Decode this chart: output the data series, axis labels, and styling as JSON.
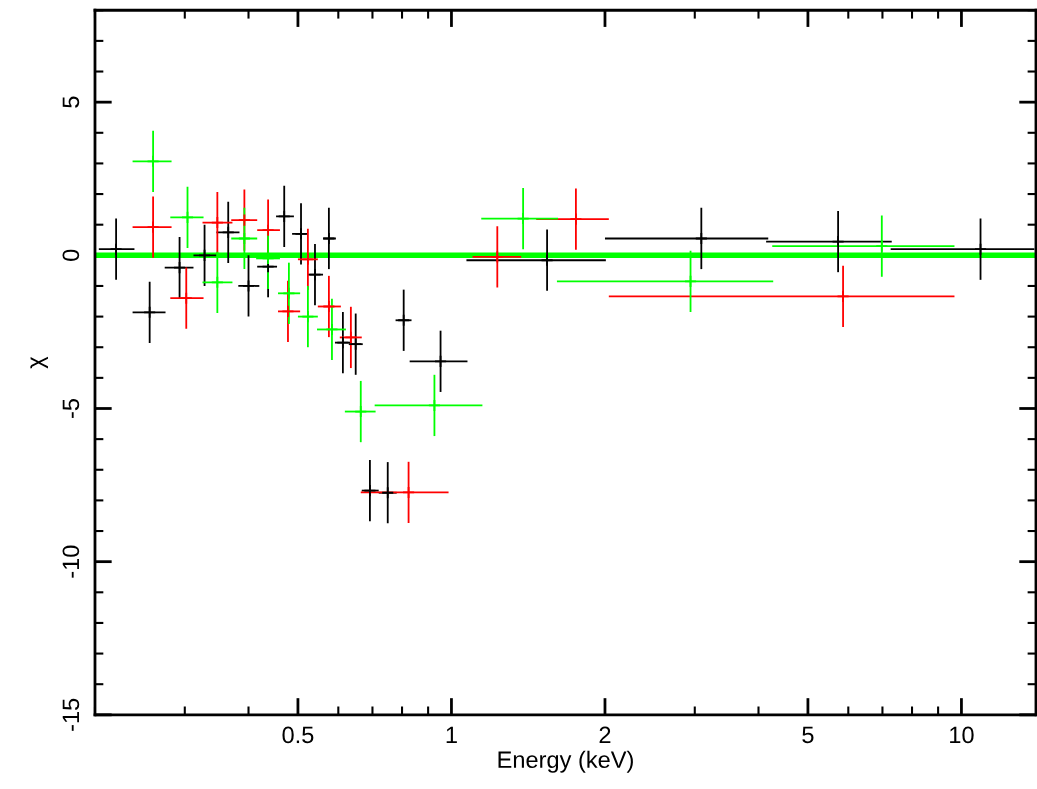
{
  "chart_data": {
    "type": "scatter",
    "xlabel": "Energy (keV)",
    "ylabel": "χ",
    "log": "x",
    "marker": "cross",
    "legend": false,
    "grid": false,
    "xlim": [
      0.2,
      14
    ],
    "xticks": [
      0.5,
      1,
      2,
      5,
      10
    ],
    "ylim": [
      -15,
      8
    ],
    "yticks": [
      -15,
      -10,
      -5,
      0,
      5
    ],
    "ref_lines": [
      {
        "axis": "y",
        "value": 0,
        "color": "#00ff00",
        "line_style": "solid"
      }
    ],
    "series": [
      {
        "color": "#000000",
        "x": [
          0.22,
          0.256,
          0.293,
          0.328,
          0.365,
          0.4,
          0.437,
          0.47,
          0.507,
          0.54,
          0.575,
          0.6125,
          0.649,
          0.692,
          0.75,
          0.806,
          0.952,
          1.54,
          3.09,
          5.73,
          10.9
        ],
        "values": [
          0.2,
          -1.86,
          -0.4,
          0.0,
          0.75,
          -1.0,
          -0.37,
          1.27,
          0.7,
          -0.63,
          0.55,
          -2.85,
          -2.9,
          -7.68,
          -7.75,
          -2.12,
          -3.46,
          -0.16,
          0.55,
          0.45,
          0.2
        ],
        "errors": [
          1,
          1,
          1,
          1,
          1,
          1,
          1,
          1,
          1,
          1,
          1,
          1,
          1,
          1,
          1,
          1,
          1,
          1,
          1,
          1,
          1
        ],
        "xerrors": [
          [
            0.2035,
            0.239
          ],
          [
            0.237,
            0.275
          ],
          [
            0.274,
            0.312
          ],
          [
            0.312,
            0.346
          ],
          [
            0.346,
            0.384
          ],
          [
            0.382,
            0.42
          ],
          [
            0.416,
            0.455
          ],
          [
            0.453,
            0.491
          ],
          [
            0.487,
            0.523
          ],
          [
            0.521,
            0.56
          ],
          [
            0.56,
            0.5935
          ],
          [
            0.591,
            0.635
          ],
          [
            0.629,
            0.67
          ],
          [
            0.667,
            0.72
          ],
          [
            0.72,
            0.781
          ],
          [
            0.777,
            0.835
          ],
          [
            0.828,
            1.075
          ],
          [
            1.07,
            2.008
          ],
          [
            2.0,
            4.18
          ],
          [
            4.14,
            7.3
          ],
          [
            7.265,
            13.9
          ]
        ]
      },
      {
        "color": "#ff0000",
        "x": [
          0.26,
          0.302,
          0.3475,
          0.3926,
          0.437,
          0.478,
          0.523,
          0.575,
          0.635,
          0.824,
          1.23,
          1.754,
          5.86
        ],
        "values": [
          0.92,
          -1.4,
          1.07,
          1.15,
          0.82,
          -1.83,
          -0.13,
          -1.67,
          -2.68,
          -7.74,
          -0.05,
          1.18,
          -1.34
        ],
        "errors": [
          1,
          1,
          1,
          1,
          1,
          1,
          1,
          1,
          1,
          1,
          1,
          1,
          1
        ],
        "xerrors": [
          [
            0.237,
            0.2826
          ],
          [
            0.281,
            0.3265
          ],
          [
            0.325,
            0.372
          ],
          [
            0.37,
            0.416
          ],
          [
            0.416,
            0.461
          ],
          [
            0.457,
            0.505
          ],
          [
            0.5,
            0.547
          ],
          [
            0.547,
            0.607
          ],
          [
            0.604,
            0.667
          ],
          [
            0.664,
            0.987
          ],
          [
            1.1,
            1.37
          ],
          [
            1.466,
            2.035
          ],
          [
            2.035,
            9.69
          ]
        ]
      },
      {
        "color": "#00ff00",
        "x": [
          0.26,
          0.3037,
          0.3475,
          0.3926,
          0.437,
          0.48,
          0.523,
          0.583,
          0.664,
          0.926,
          1.382,
          2.943,
          6.98
        ],
        "values": [
          3.07,
          1.24,
          -0.88,
          0.55,
          -0.1,
          -1.24,
          -2.0,
          -2.42,
          -5.1,
          -4.9,
          1.2,
          -0.85,
          0.3
        ],
        "errors": [
          1,
          1,
          1,
          1,
          1,
          1,
          1,
          1,
          1,
          1,
          1,
          1,
          1
        ],
        "xerrors": [
          [
            0.237,
            0.2826
          ],
          [
            0.281,
            0.3265
          ],
          [
            0.325,
            0.372
          ],
          [
            0.37,
            0.416
          ],
          [
            0.414,
            0.461
          ],
          [
            0.457,
            0.505
          ],
          [
            0.5,
            0.547
          ],
          [
            0.545,
            0.621
          ],
          [
            0.618,
            0.71
          ],
          [
            0.707,
            1.15
          ],
          [
            1.144,
            1.618
          ],
          [
            1.61,
            4.275
          ],
          [
            4.256,
            9.69
          ]
        ]
      }
    ]
  }
}
